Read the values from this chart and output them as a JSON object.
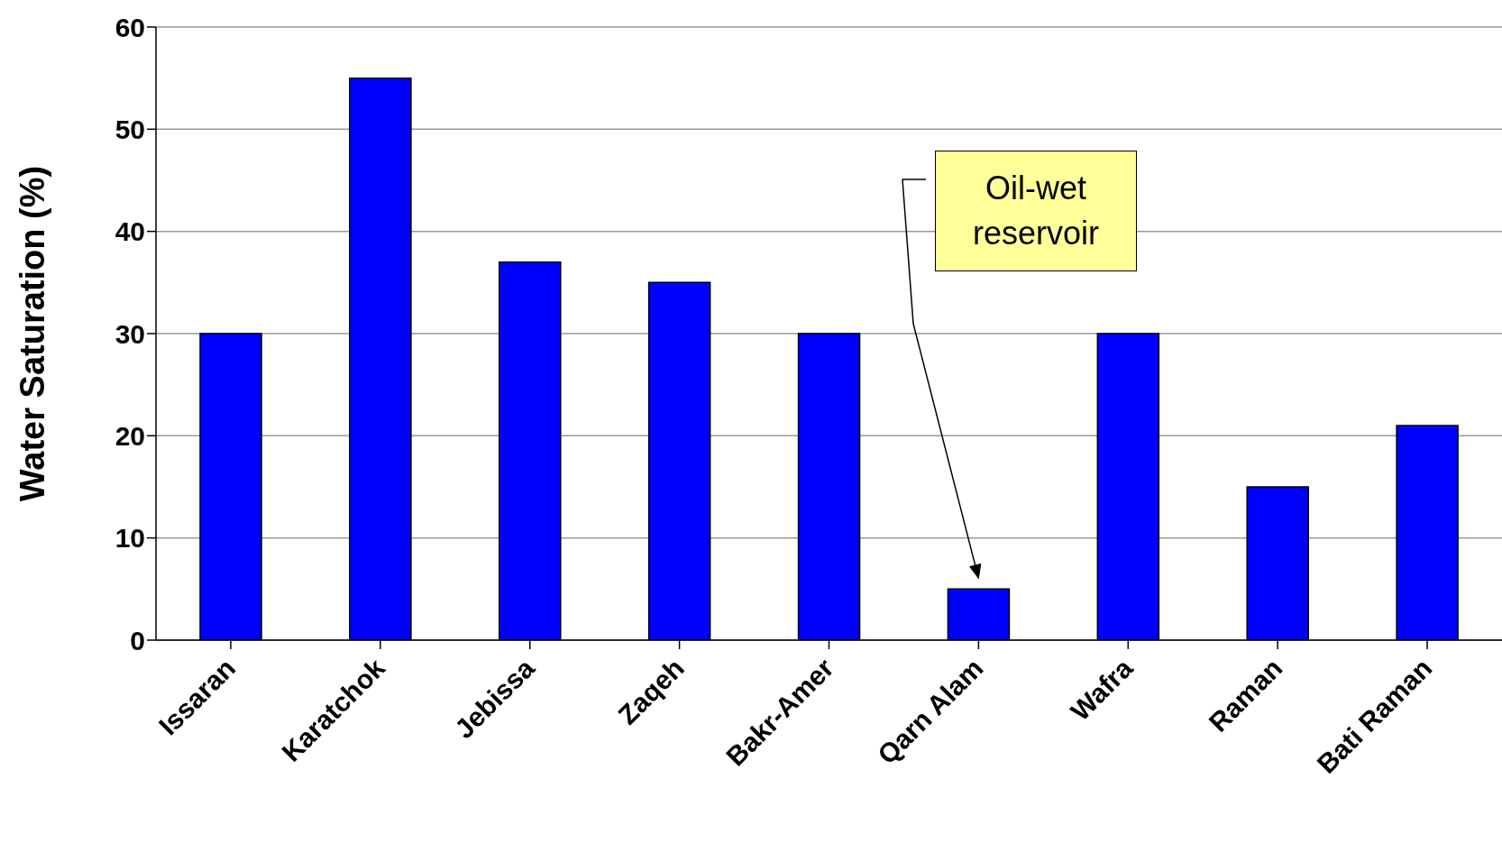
{
  "chart_data": {
    "type": "bar",
    "ylabel": "Water Saturation (%)",
    "categories": [
      "Issaran",
      "Karatchok",
      "Jebissa",
      "Zaqeh",
      "Bakr-Amer",
      "Qarn Alam",
      "Wafra",
      "Raman",
      "Bati Raman"
    ],
    "values": [
      30,
      55,
      37,
      35,
      30,
      5,
      30,
      15,
      21
    ],
    "color": "#0000ff",
    "ylim": [
      0,
      60
    ],
    "yticks": [
      0,
      10,
      20,
      30,
      40,
      50,
      60
    ],
    "grid": "y",
    "annotations": [
      "Oil-wet reservoir"
    ]
  }
}
